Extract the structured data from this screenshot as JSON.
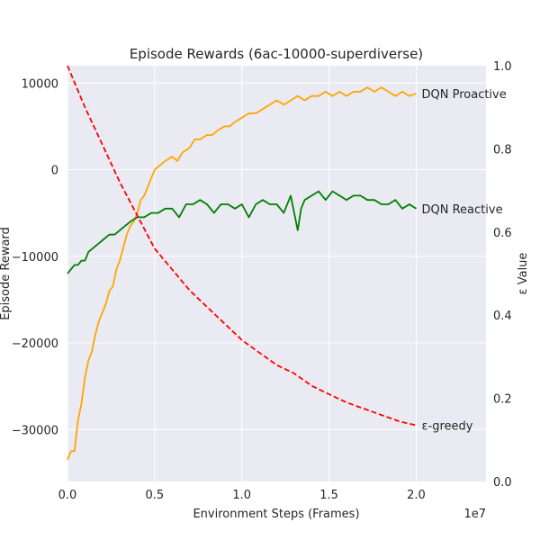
{
  "chart_data": {
    "type": "line",
    "title": "Episode Rewards (6ac-10000-superdiverse)",
    "xlabel": "Environment Steps (Frames)",
    "x_offset_label": "1e7",
    "xlim": [
      0,
      24000000
    ],
    "x_ticks": [
      0,
      5000000,
      10000000,
      15000000,
      20000000
    ],
    "x_tick_labels": [
      "0.0",
      "0.5",
      "1.0",
      "1.5",
      "2.0"
    ],
    "ylabel_left": "Episode Reward",
    "ylim_left": [
      -36000,
      12000
    ],
    "y_left_ticks": [
      -30000,
      -20000,
      -10000,
      0,
      10000
    ],
    "y_left_tick_labels": [
      "−30000",
      "−20000",
      "−10000",
      "0",
      "10000"
    ],
    "ylabel_right": "ε Value",
    "ylim_right": [
      0.0,
      1.0
    ],
    "y_right_ticks": [
      0.0,
      0.2,
      0.4,
      0.6,
      0.8,
      1.0
    ],
    "y_right_tick_labels": [
      "0.0",
      "0.2",
      "0.4",
      "0.6",
      "0.8",
      "1.0"
    ],
    "grid": true,
    "series": [
      {
        "name": "DQN Proactive",
        "color": "#ffa500",
        "axis": "left",
        "style": "solid",
        "x": [
          0,
          200000,
          400000,
          600000,
          800000,
          1000000,
          1200000,
          1400000,
          1600000,
          1800000,
          2000000,
          2200000,
          2400000,
          2600000,
          2800000,
          3000000,
          3200000,
          3400000,
          3600000,
          3800000,
          4000000,
          4200000,
          4400000,
          4600000,
          4800000,
          5000000,
          5300000,
          5600000,
          6000000,
          6300000,
          6600000,
          7000000,
          7300000,
          7600000,
          8000000,
          8300000,
          8600000,
          9000000,
          9300000,
          9600000,
          10000000,
          10400000,
          10800000,
          11200000,
          11600000,
          12000000,
          12400000,
          12800000,
          13200000,
          13600000,
          14000000,
          14400000,
          14800000,
          15200000,
          15600000,
          16000000,
          16400000,
          16800000,
          17200000,
          17600000,
          18000000,
          18400000,
          18800000,
          19200000,
          19600000,
          20000000
        ],
        "y": [
          -33500,
          -32500,
          -32500,
          -29000,
          -27000,
          -24000,
          -22000,
          -21000,
          -19000,
          -17500,
          -16500,
          -15500,
          -14000,
          -13500,
          -11500,
          -10500,
          -9000,
          -7500,
          -6500,
          -6000,
          -5000,
          -3500,
          -3000,
          -2000,
          -1000,
          0,
          500,
          1000,
          1500,
          1000,
          2000,
          2500,
          3500,
          3500,
          4000,
          4000,
          4500,
          5000,
          5000,
          5500,
          6000,
          6500,
          6500,
          7000,
          7500,
          8000,
          7500,
          8000,
          8500,
          8000,
          8500,
          8500,
          9000,
          8500,
          9000,
          8500,
          9000,
          9000,
          9500,
          9000,
          9500,
          9000,
          8500,
          9000,
          8500,
          8800
        ]
      },
      {
        "name": "DQN Reactive",
        "color": "#008000",
        "axis": "left",
        "style": "solid",
        "x": [
          0,
          200000,
          400000,
          600000,
          800000,
          1000000,
          1200000,
          1500000,
          1800000,
          2100000,
          2400000,
          2700000,
          3000000,
          3300000,
          3600000,
          4000000,
          4400000,
          4800000,
          5200000,
          5600000,
          6000000,
          6400000,
          6800000,
          7200000,
          7600000,
          8000000,
          8400000,
          8800000,
          9200000,
          9600000,
          10000000,
          10400000,
          10800000,
          11200000,
          11600000,
          12000000,
          12400000,
          12800000,
          13000000,
          13200000,
          13400000,
          13600000,
          14000000,
          14400000,
          14800000,
          15200000,
          15600000,
          16000000,
          16400000,
          16800000,
          17200000,
          17600000,
          18000000,
          18400000,
          18800000,
          19200000,
          19600000,
          20000000
        ],
        "y": [
          -12000,
          -11500,
          -11000,
          -11000,
          -10500,
          -10500,
          -9500,
          -9000,
          -8500,
          -8000,
          -7500,
          -7500,
          -7000,
          -6500,
          -6000,
          -5500,
          -5500,
          -5000,
          -5000,
          -4500,
          -4500,
          -5500,
          -4000,
          -4000,
          -3500,
          -4000,
          -5000,
          -4000,
          -4000,
          -4500,
          -4000,
          -5500,
          -4000,
          -3500,
          -4000,
          -4000,
          -5000,
          -3000,
          -5000,
          -7000,
          -4500,
          -3500,
          -3000,
          -2500,
          -3500,
          -2500,
          -3000,
          -3500,
          -3000,
          -3000,
          -3500,
          -3500,
          -4000,
          -4000,
          -3500,
          -4500,
          -4000,
          -4500
        ]
      },
      {
        "name": "ε-greedy",
        "color": "#ff0000",
        "axis": "right",
        "style": "dashed",
        "x": [
          0,
          1000000,
          2000000,
          3000000,
          4000000,
          5000000,
          6000000,
          7000000,
          8000000,
          9000000,
          10000000,
          11000000,
          12000000,
          13000000,
          14000000,
          15000000,
          16000000,
          17000000,
          18000000,
          19000000,
          20000000
        ],
        "y": [
          1.0,
          0.9,
          0.81,
          0.72,
          0.64,
          0.56,
          0.51,
          0.46,
          0.42,
          0.38,
          0.34,
          0.31,
          0.28,
          0.26,
          0.23,
          0.21,
          0.19,
          0.175,
          0.16,
          0.145,
          0.135
        ]
      }
    ]
  }
}
